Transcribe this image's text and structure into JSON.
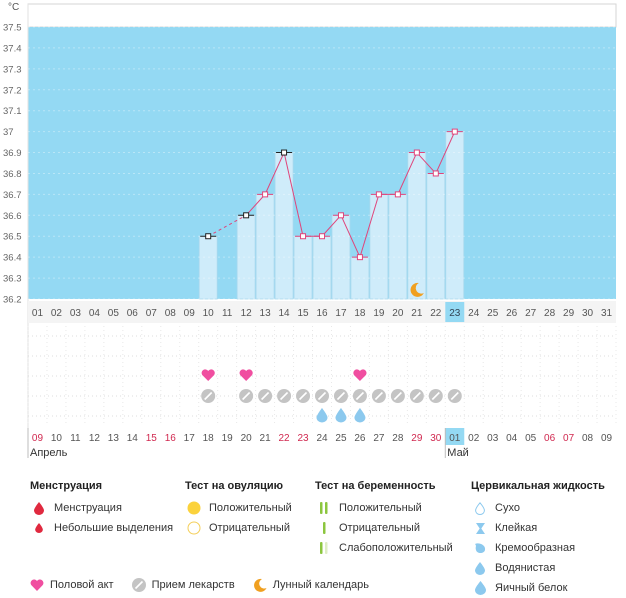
{
  "chart_data": {
    "type": "line",
    "unit_label": "°C",
    "y_ticks": [
      "37.5",
      "37.4",
      "37.3",
      "37.2",
      "37.1",
      "37",
      "36.9",
      "36.8",
      "36.7",
      "36.6",
      "36.5",
      "36.4",
      "36.3",
      "36.2"
    ],
    "ylim": [
      36.2,
      37.5
    ],
    "day_labels": [
      "01",
      "02",
      "03",
      "04",
      "05",
      "06",
      "07",
      "08",
      "09",
      "10",
      "11",
      "12",
      "13",
      "14",
      "15",
      "16",
      "17",
      "18",
      "19",
      "20",
      "21",
      "22",
      "23",
      "24",
      "25",
      "26",
      "27",
      "28",
      "29",
      "30",
      "31"
    ],
    "highlight_day_index": 22,
    "points": [
      {
        "day": 10,
        "temp": 36.5,
        "marker": "black"
      },
      {
        "day": 12,
        "temp": 36.6,
        "marker": "black"
      },
      {
        "day": 13,
        "temp": 36.7,
        "marker": "pink"
      },
      {
        "day": 14,
        "temp": 36.9,
        "marker": "black"
      },
      {
        "day": 15,
        "temp": 36.5,
        "marker": "pink"
      },
      {
        "day": 16,
        "temp": 36.5,
        "marker": "pink"
      },
      {
        "day": 17,
        "temp": 36.6,
        "marker": "pink"
      },
      {
        "day": 18,
        "temp": 36.4,
        "marker": "pink"
      },
      {
        "day": 19,
        "temp": 36.7,
        "marker": "pink"
      },
      {
        "day": 20,
        "temp": 36.7,
        "marker": "pink"
      },
      {
        "day": 21,
        "temp": 36.9,
        "marker": "pink"
      },
      {
        "day": 22,
        "temp": 36.8,
        "marker": "pink"
      },
      {
        "day": 23,
        "temp": 37.0,
        "marker": "pink"
      }
    ],
    "dashed_segment": [
      10,
      12
    ],
    "moon_day": 21,
    "heart_days": [
      10,
      12,
      18
    ],
    "medication_days": [
      10,
      12,
      13,
      14,
      15,
      16,
      17,
      18,
      19,
      20,
      21,
      22,
      23
    ],
    "fluid_drop_days": [
      16,
      17,
      18
    ],
    "cycle_days": [
      {
        "label": "09",
        "red": true
      },
      {
        "label": "10",
        "red": false
      },
      {
        "label": "11",
        "red": false
      },
      {
        "label": "12",
        "red": false
      },
      {
        "label": "13",
        "red": false
      },
      {
        "label": "14",
        "red": false
      },
      {
        "label": "15",
        "red": true
      },
      {
        "label": "16",
        "red": true
      },
      {
        "label": "17",
        "red": false
      },
      {
        "label": "18",
        "red": false
      },
      {
        "label": "19",
        "red": false
      },
      {
        "label": "20",
        "red": false
      },
      {
        "label": "21",
        "red": false
      },
      {
        "label": "22",
        "red": true
      },
      {
        "label": "23",
        "red": true
      },
      {
        "label": "24",
        "red": false
      },
      {
        "label": "25",
        "red": false
      },
      {
        "label": "26",
        "red": false
      },
      {
        "label": "27",
        "red": false
      },
      {
        "label": "28",
        "red": false
      },
      {
        "label": "29",
        "red": true
      },
      {
        "label": "30",
        "red": true
      },
      {
        "label": "01",
        "red": false,
        "highlight": true
      },
      {
        "label": "02",
        "red": false
      },
      {
        "label": "03",
        "red": false
      },
      {
        "label": "04",
        "red": false
      },
      {
        "label": "05",
        "red": false
      },
      {
        "label": "06",
        "red": true
      },
      {
        "label": "07",
        "red": true
      },
      {
        "label": "08",
        "red": false
      },
      {
        "label": "09",
        "red": false
      }
    ],
    "month_labels": [
      {
        "label": "Апрель",
        "at_index": 0
      },
      {
        "label": "Май",
        "at_index": 22
      }
    ]
  },
  "colors": {
    "sky": "#94d9f3",
    "bar_fill": "#cfecfa",
    "bar_stroke": "#a9d9ee",
    "line": "#e0457b",
    "highlight": "#94d9f3",
    "red_day": "#d0284f",
    "heart": "#f04ea0",
    "pill": "#c4c4c4",
    "drop": "#8cc9ee",
    "moon": "#f0a020"
  },
  "legend": {
    "menstruation": {
      "title": "Менструация",
      "items": [
        "Менструация",
        "Небольшие выделения"
      ]
    },
    "ovulation": {
      "title": "Тест на овуляцию",
      "items": [
        "Положительный",
        "Отрицательный"
      ]
    },
    "pregnancy": {
      "title": "Тест на беременность",
      "items": [
        "Положительный",
        "Отрицательный",
        "Слабоположительный"
      ]
    },
    "cervical": {
      "title": "Цервикальная жидкость",
      "items": [
        "Сухо",
        "Клейкая",
        "Кремообразная",
        "Водянистая",
        "Яичный белок"
      ]
    },
    "bottom": [
      "Половой акт",
      "Прием лекарств",
      "Лунный календарь"
    ]
  }
}
